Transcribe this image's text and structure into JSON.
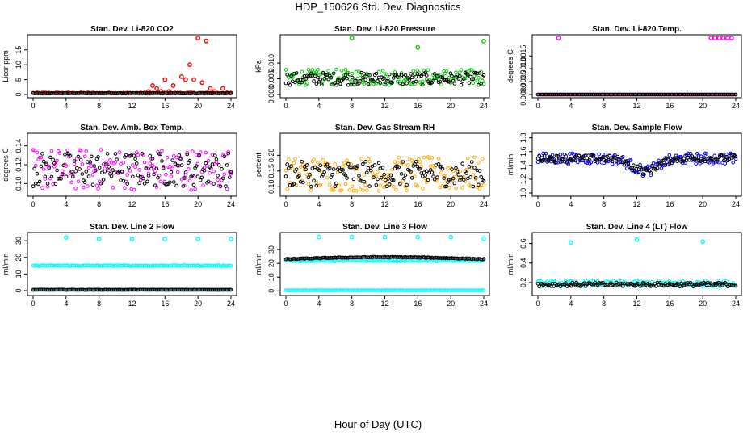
{
  "figure": {
    "title": "HDP_150626  Std. Dev. Diagnostics",
    "xlabel": "Hour of Day (UTC)"
  },
  "colors": {
    "black": "#000000",
    "red": "#ff0000",
    "green": "#00cc00",
    "magenta": "#ff00ff",
    "orange": "#ffaa00",
    "blue": "#0000ff",
    "cyan": "#00ffff"
  },
  "chart_data": [
    {
      "type": "scatter",
      "title": "Stan. Dev. Li-820 CO2",
      "ylabel": "Licor ppm",
      "xlim": [
        0,
        24
      ],
      "ylim": [
        0,
        19
      ],
      "xticks": [
        0,
        4,
        8,
        12,
        16,
        20,
        24
      ],
      "yticks": [
        0,
        5,
        10,
        15
      ],
      "yticklabels": [
        "0",
        "5",
        "10",
        "15"
      ],
      "series": [
        {
          "color": "red",
          "base": 0.5,
          "noise": 0.2,
          "x": [
            14,
            14.5,
            15,
            15.5,
            16,
            16.5,
            17,
            18,
            18.5,
            19,
            19.5,
            20,
            20.5,
            21,
            21.5,
            22,
            23
          ],
          "y": [
            1,
            3,
            2,
            1,
            5,
            1,
            3,
            6,
            5,
            10,
            5,
            19,
            4,
            18,
            2,
            1,
            2
          ]
        },
        {
          "color": "black",
          "base": 0.4,
          "noise": 0.1
        }
      ]
    },
    {
      "type": "scatter",
      "title": "Stan. Dev. Li-820 Pressure",
      "ylabel": "kPa",
      "xlim": [
        0,
        24
      ],
      "ylim": [
        0,
        0.018
      ],
      "xticks": [
        0,
        4,
        8,
        12,
        16,
        20,
        24
      ],
      "yticks": [
        0,
        0.005,
        0.01
      ],
      "yticklabels": [
        "0.000",
        "0.005",
        "0.010"
      ],
      "series": [
        {
          "color": "green",
          "base": 0.0055,
          "noise": 0.0025,
          "x": [
            8,
            16,
            24
          ],
          "y": [
            0.018,
            0.015,
            0.017
          ]
        },
        {
          "color": "black",
          "base": 0.005,
          "noise": 0.002
        }
      ]
    },
    {
      "type": "scatter",
      "title": "Stan. Dev. Li-820 Temp.",
      "ylabel": "degrees C",
      "xlim": [
        0,
        24
      ],
      "ylim": [
        0,
        0.0022
      ],
      "xticks": [
        0,
        4,
        8,
        12,
        16,
        20,
        24
      ],
      "yticks": [
        0,
        0.0005,
        0.001,
        0.0015
      ],
      "yticklabels": [
        "0.0000",
        "0.0005",
        "0.0010",
        "0.0015"
      ],
      "series": [
        {
          "color": "magenta",
          "base": 0,
          "noise": 0,
          "x": [
            2.5,
            21,
            21.5,
            22,
            22.5,
            23,
            23.5
          ],
          "y": [
            0.0022,
            0.0022,
            0.0022,
            0.0022,
            0.0022,
            0.0022,
            0.0022
          ]
        },
        {
          "color": "black",
          "base": 0,
          "noise": 0
        }
      ]
    },
    {
      "type": "scatter",
      "title": "Stan. Dev. Amb. Box Temp.",
      "ylabel": "degrees C",
      "xlim": [
        0,
        24
      ],
      "ylim": [
        0.09,
        0.15
      ],
      "xticks": [
        0,
        4,
        8,
        12,
        16,
        20,
        24
      ],
      "yticks": [
        0.1,
        0.12,
        0.14
      ],
      "yticklabels": [
        "0.10",
        "0.12",
        "0.14"
      ],
      "series": [
        {
          "color": "magenta",
          "base": 0.115,
          "noise": 0.022
        },
        {
          "color": "black",
          "base": 0.115,
          "noise": 0.018
        }
      ]
    },
    {
      "type": "scatter",
      "title": "Stan. Dev. Gas Stream RH",
      "ylabel": "percent",
      "xlim": [
        0,
        24
      ],
      "ylim": [
        0.08,
        0.26
      ],
      "xticks": [
        0,
        4,
        8,
        12,
        16,
        20,
        24
      ],
      "yticks": [
        0.1,
        0.15,
        0.2
      ],
      "yticklabels": [
        "0.10",
        "0.15",
        "0.20"
      ],
      "series": [
        {
          "color": "orange",
          "base": 0.14,
          "noise": 0.055
        },
        {
          "color": "black",
          "base": 0.14,
          "noise": 0.04
        }
      ]
    },
    {
      "type": "scatter",
      "title": "Stan. Dev. Sample Flow",
      "ylabel": "ml/min",
      "xlim": [
        0,
        24
      ],
      "ylim": [
        1.0,
        1.82
      ],
      "xticks": [
        0,
        4,
        8,
        12,
        16,
        20,
        24
      ],
      "yticks": [
        1.0,
        1.2,
        1.4,
        1.6,
        1.8
      ],
      "yticklabels": [
        "1.0",
        "1.2",
        "1.4",
        "1.6",
        "1.8"
      ],
      "series": [
        {
          "color": "blue",
          "base": 1.5,
          "noise": 0.08,
          "dip": true
        },
        {
          "color": "black",
          "base": 1.5,
          "noise": 0.05,
          "dip": true
        }
      ]
    },
    {
      "type": "scatter",
      "title": "Stan. Dev. Line 2 Flow",
      "ylabel": "ml/min",
      "xlim": [
        0,
        24
      ],
      "ylim": [
        -1,
        33
      ],
      "xticks": [
        0,
        4,
        8,
        12,
        16,
        20,
        24
      ],
      "yticks": [
        0,
        10,
        20,
        30
      ],
      "yticklabels": [
        "0",
        "10",
        "20",
        "30"
      ],
      "series": [
        {
          "color": "cyan",
          "base": 15,
          "noise": 0.3,
          "x": [
            4,
            8,
            12,
            16,
            20,
            24
          ],
          "y": [
            32,
            31,
            31,
            31,
            31,
            31
          ]
        },
        {
          "color": "cyan",
          "base": 0.4,
          "noise": 0.1
        },
        {
          "color": "black",
          "base": 0.5,
          "noise": 0.1
        }
      ]
    },
    {
      "type": "scatter",
      "title": "Stan. Dev. Line 3 Flow",
      "ylabel": "ml/min",
      "xlim": [
        0,
        24
      ],
      "ylim": [
        -1,
        40
      ],
      "xticks": [
        0,
        4,
        8,
        12,
        16,
        20,
        24
      ],
      "yticks": [
        0,
        10,
        20,
        30
      ],
      "yticklabels": [
        "0",
        "10",
        "20",
        "30"
      ],
      "series": [
        {
          "color": "cyan",
          "base": 22,
          "noise": 0.6,
          "x": [
            4,
            8,
            12,
            16,
            20,
            24
          ],
          "y": [
            39,
            39,
            39,
            39,
            39,
            38
          ]
        },
        {
          "color": "cyan",
          "base": 0.4,
          "noise": 0.1
        },
        {
          "color": "black",
          "base": 23,
          "noise": 0.3,
          "arch": true
        }
      ]
    },
    {
      "type": "scatter",
      "title": "Stan. Dev. Line 4 (LT) Flow",
      "ylabel": "ml/min",
      "xlim": [
        0,
        24
      ],
      "ylim": [
        0.1,
        0.68
      ],
      "xticks": [
        0,
        4,
        8,
        12,
        16,
        20,
        24
      ],
      "yticks": [
        0.2,
        0.4,
        0.6
      ],
      "yticklabels": [
        "0.2",
        "0.4",
        "0.6"
      ],
      "series": [
        {
          "color": "cyan",
          "base": 0.19,
          "noise": 0.03,
          "x": [
            4,
            12,
            20
          ],
          "y": [
            0.61,
            0.64,
            0.62
          ]
        },
        {
          "color": "black",
          "base": 0.18,
          "noise": 0.02
        }
      ]
    }
  ]
}
